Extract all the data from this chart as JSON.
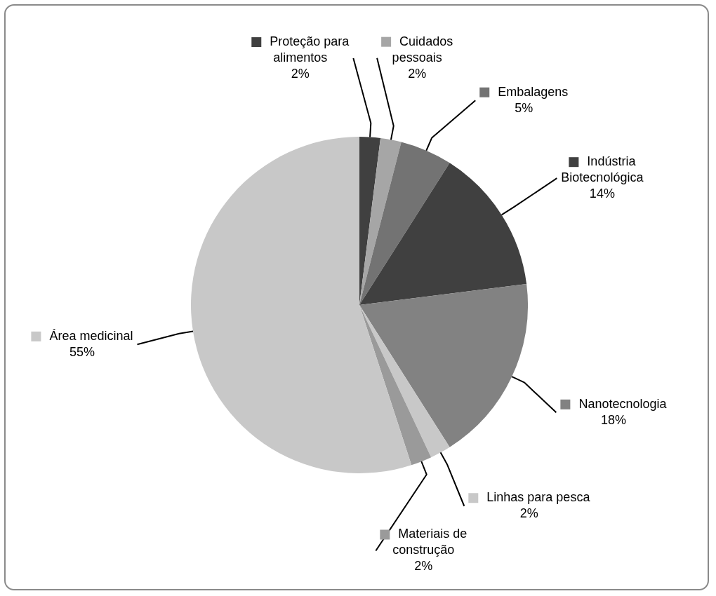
{
  "chart_data": {
    "type": "pie",
    "categories": [
      "Proteção para alimentos",
      "Cuidados pessoais",
      "Embalagens",
      "Indústria Biotecnológica",
      "Nanotecnologia",
      "Linhas para pesca",
      "Materiais de construção",
      "Área medicinal"
    ],
    "values": [
      2,
      2,
      5,
      14,
      18,
      2,
      2,
      55
    ],
    "colors": [
      "#404040",
      "#a6a6a6",
      "#737373",
      "#404040",
      "#828282",
      "#c8c8c8",
      "#9a9a9a",
      "#c8c8c8"
    ],
    "legend": "right",
    "value_labels": [
      "2%",
      "2%",
      "5%",
      "14%",
      "18%",
      "2%",
      "2%",
      "55%"
    ]
  }
}
